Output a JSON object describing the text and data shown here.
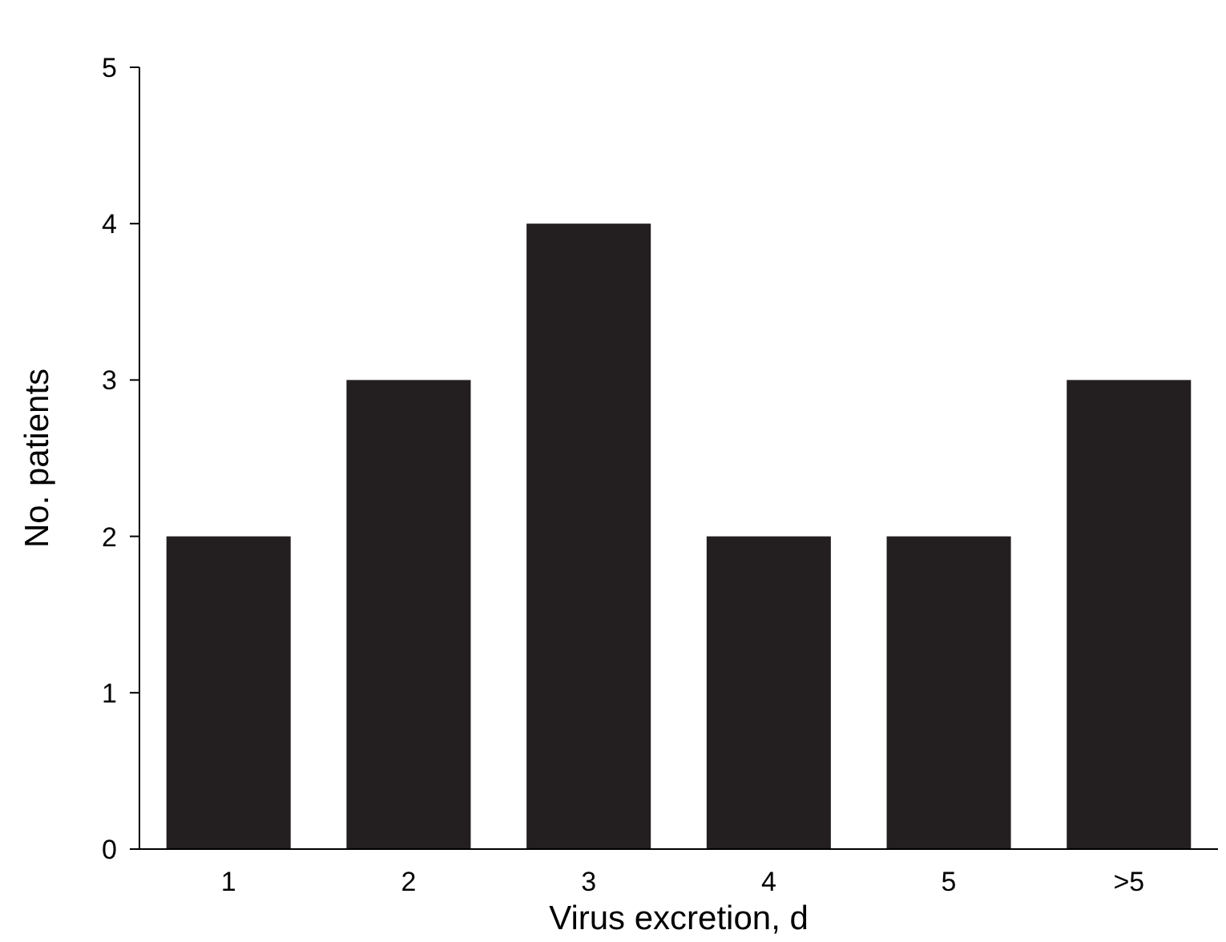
{
  "chart_data": {
    "type": "bar",
    "xlabel": "Virus excretion, d",
    "ylabel": "No. patients",
    "categories": [
      "1",
      "2",
      "3",
      "4",
      "5",
      ">5"
    ],
    "values": [
      2,
      3,
      4,
      2,
      2,
      3
    ],
    "color": "#231f20",
    "ylim": [
      0,
      5
    ],
    "yticks": [
      0,
      1,
      2,
      3,
      4,
      5
    ],
    "grid": false
  }
}
